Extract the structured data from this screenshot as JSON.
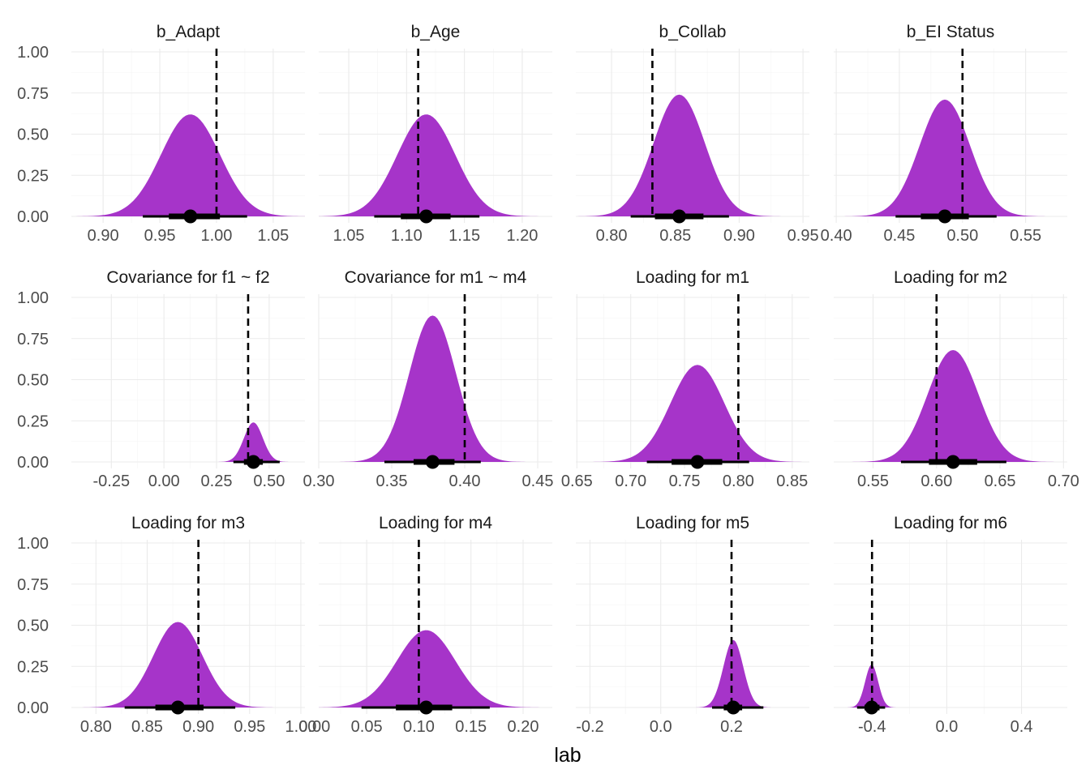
{
  "chart_data": {
    "type": "area",
    "xlabel": "lab",
    "ylabel": "",
    "ylim": [
      0,
      1
    ],
    "y_ticks": [
      "0.00",
      "0.25",
      "0.50",
      "0.75",
      "1.00"
    ],
    "y_tick_values": [
      0,
      0.25,
      0.5,
      0.75,
      1.0
    ],
    "grid": true,
    "fill_color": "#a634c9",
    "reference_line": "dashed black vertical line",
    "point_interval_color": "#000000",
    "panels": [
      {
        "title": "b_Adapt",
        "xlim": [
          0.872,
          1.078
        ],
        "x_ticks": [
          "0.90",
          "0.95",
          "1.00",
          "1.05"
        ],
        "x_tick_values": [
          0.9,
          0.95,
          1.0,
          1.05
        ],
        "mean": 0.977,
        "sd": 0.026,
        "peak": 0.62,
        "ref_line": 1.0,
        "point": 0.977,
        "ci_inner": [
          0.958,
          1.003
        ],
        "ci_outer": [
          0.935,
          1.027
        ]
      },
      {
        "title": "b_Age",
        "xlim": [
          1.024,
          1.226
        ],
        "x_ticks": [
          "1.05",
          "1.10",
          "1.15",
          "1.20"
        ],
        "x_tick_values": [
          1.05,
          1.1,
          1.15,
          1.2
        ],
        "mean": 1.117,
        "sd": 0.025,
        "peak": 0.62,
        "ref_line": 1.11,
        "point": 1.117,
        "ci_inner": [
          1.095,
          1.138
        ],
        "ci_outer": [
          1.072,
          1.163
        ]
      },
      {
        "title": "b_Collab",
        "xlim": [
          0.772,
          0.955
        ],
        "x_ticks": [
          "0.80",
          "0.85",
          "0.90",
          "0.95"
        ],
        "x_tick_values": [
          0.8,
          0.85,
          0.9,
          0.95
        ],
        "mean": 0.853,
        "sd": 0.02,
        "peak": 0.74,
        "ref_line": 0.832,
        "point": 0.853,
        "ci_inner": [
          0.834,
          0.872
        ],
        "ci_outer": [
          0.815,
          0.892
        ]
      },
      {
        "title": "b_EI Status",
        "xlim": [
          0.398,
          0.583
        ],
        "x_ticks": [
          "0.40",
          "0.45",
          "0.50",
          "0.55"
        ],
        "x_tick_values": [
          0.4,
          0.45,
          0.5,
          0.55
        ],
        "mean": 0.486,
        "sd": 0.02,
        "peak": 0.71,
        "ref_line": 0.5,
        "point": 0.486,
        "ci_inner": [
          0.467,
          0.505
        ],
        "ci_outer": [
          0.447,
          0.527
        ]
      },
      {
        "title": "Covariance for f1 ~ f2",
        "xlim": [
          -0.44,
          0.67
        ],
        "x_ticks": [
          "-0.25",
          "0.00",
          "0.25",
          "0.50"
        ],
        "x_tick_values": [
          -0.25,
          0.0,
          0.25,
          0.5
        ],
        "mean": 0.425,
        "sd": 0.045,
        "peak": 0.24,
        "ref_line": 0.4,
        "point": 0.425,
        "ci_inner": [
          0.38,
          0.47
        ],
        "ci_outer": [
          0.33,
          0.55
        ]
      },
      {
        "title": "Covariance for m1 ~ m4",
        "xlim": [
          0.3,
          0.46
        ],
        "x_ticks": [
          "0.30",
          "0.35",
          "0.40",
          "0.45"
        ],
        "x_tick_values": [
          0.3,
          0.35,
          0.4,
          0.45
        ],
        "mean": 0.378,
        "sd": 0.016,
        "peak": 0.89,
        "ref_line": 0.4,
        "point": 0.378,
        "ci_inner": [
          0.365,
          0.393
        ],
        "ci_outer": [
          0.345,
          0.411
        ]
      },
      {
        "title": "Loading for m1",
        "xlim": [
          0.649,
          0.866
        ],
        "x_ticks": [
          "0.65",
          "0.70",
          "0.75",
          "0.80",
          "0.85"
        ],
        "x_tick_values": [
          0.65,
          0.7,
          0.75,
          0.8,
          0.85
        ],
        "mean": 0.762,
        "sd": 0.025,
        "peak": 0.59,
        "ref_line": 0.8,
        "point": 0.762,
        "ci_inner": [
          0.738,
          0.785
        ],
        "ci_outer": [
          0.715,
          0.81
        ]
      },
      {
        "title": "Loading for m2",
        "xlim": [
          0.519,
          0.703
        ],
        "x_ticks": [
          "0.55",
          "0.60",
          "0.65",
          "0.70"
        ],
        "x_tick_values": [
          0.55,
          0.6,
          0.65,
          0.7
        ],
        "mean": 0.613,
        "sd": 0.02,
        "peak": 0.68,
        "ref_line": 0.6,
        "point": 0.613,
        "ci_inner": [
          0.594,
          0.632
        ],
        "ci_outer": [
          0.572,
          0.655
        ]
      },
      {
        "title": "Loading for m3",
        "xlim": [
          0.776,
          1.004
        ],
        "x_ticks": [
          "0.80",
          "0.85",
          "0.90",
          "0.95",
          "1.00"
        ],
        "x_tick_values": [
          0.8,
          0.85,
          0.9,
          0.95,
          1.0
        ],
        "mean": 0.88,
        "sd": 0.024,
        "peak": 0.52,
        "ref_line": 0.9,
        "point": 0.88,
        "ci_inner": [
          0.858,
          0.905
        ],
        "ci_outer": [
          0.828,
          0.936
        ]
      },
      {
        "title": "Loading for m4",
        "xlim": [
          0.004,
          0.228
        ],
        "x_ticks": [
          "0.00",
          "0.05",
          "0.10",
          "0.15",
          "0.20"
        ],
        "x_tick_values": [
          0.0,
          0.05,
          0.1,
          0.15,
          0.2
        ],
        "mean": 0.107,
        "sd": 0.028,
        "peak": 0.47,
        "ref_line": 0.1,
        "point": 0.107,
        "ci_inner": [
          0.078,
          0.132
        ],
        "ci_outer": [
          0.045,
          0.168
        ]
      },
      {
        "title": "Loading for m5",
        "xlim": [
          -0.24,
          0.42
        ],
        "x_ticks": [
          "-0.2",
          "0.0",
          "0.2"
        ],
        "x_tick_values": [
          -0.2,
          0.0,
          0.2
        ],
        "mean": 0.205,
        "sd": 0.028,
        "peak": 0.41,
        "ref_line": 0.2,
        "point": 0.205,
        "ci_inner": [
          0.178,
          0.23
        ],
        "ci_outer": [
          0.145,
          0.29
        ]
      },
      {
        "title": "Loading for m6",
        "xlim": [
          -0.605,
          0.645
        ],
        "x_ticks": [
          "-0.4",
          "0.0",
          "0.4"
        ],
        "x_tick_values": [
          -0.4,
          0.0,
          0.4
        ],
        "mean": -0.402,
        "sd": 0.035,
        "peak": 0.26,
        "ref_line": -0.4,
        "point": -0.402,
        "ci_inner": [
          -0.44,
          -0.36
        ],
        "ci_outer": [
          -0.48,
          -0.33
        ]
      }
    ]
  }
}
